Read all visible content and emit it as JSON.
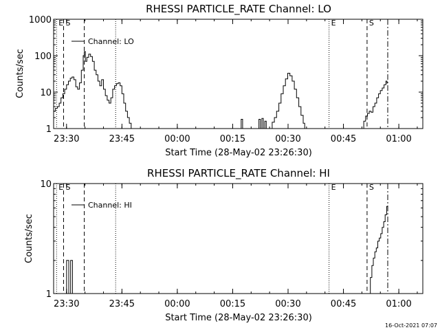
{
  "footer": {
    "timestamp": "16-Oct-2021 07:07"
  },
  "chart_data": [
    {
      "type": "line",
      "title": "RHESSI PARTICLE_RATE Channel: LO",
      "xlabel": "Start Time (28-May-02 23:26:30)",
      "ylabel": "Counts/sec",
      "yscale": "log",
      "ylim": [
        1,
        1000
      ],
      "xlim_minutes": [
        0,
        100
      ],
      "x_ticks": [
        {
          "t": 3.5,
          "label": "23:30"
        },
        {
          "t": 18.5,
          "label": "23:45"
        },
        {
          "t": 33.5,
          "label": "00:00"
        },
        {
          "t": 48.5,
          "label": "00:15"
        },
        {
          "t": 63.5,
          "label": "00:30"
        },
        {
          "t": 78.5,
          "label": "00:45"
        },
        {
          "t": 93.5,
          "label": "01:00"
        }
      ],
      "y_ticks": [
        {
          "v": 1,
          "label": "1"
        },
        {
          "v": 10,
          "label": "10"
        },
        {
          "v": 100,
          "label": "100"
        },
        {
          "v": 1000,
          "label": "1000"
        }
      ],
      "grid": false,
      "legend": {
        "position": "top-left",
        "entries": [
          "Channel: LO"
        ]
      },
      "markers": [
        {
          "t": 0.8,
          "style": "dotted",
          "label": "E"
        },
        {
          "t": 2.7,
          "style": "dashed",
          "label": "S"
        },
        {
          "t": 8.3,
          "style": "dashed",
          "label": ""
        },
        {
          "t": 16.8,
          "style": "dotted",
          "label": ""
        },
        {
          "t": 74.6,
          "style": "dotted",
          "label": "E"
        },
        {
          "t": 84.9,
          "style": "dashed",
          "label": "S"
        },
        {
          "t": 90.5,
          "style": "dashdot",
          "label": ""
        }
      ],
      "series": [
        {
          "name": "Channel: LO",
          "segments": [
            [
              [
                0,
                3
              ],
              [
                0.5,
                3.6
              ],
              [
                1,
                4
              ],
              [
                1.5,
                5
              ],
              [
                2,
                7
              ],
              [
                2.5,
                9
              ],
              [
                3,
                12
              ],
              [
                3.5,
                16
              ],
              [
                4,
                20
              ],
              [
                4.5,
                24
              ],
              [
                5,
                26
              ],
              [
                5.5,
                22
              ],
              [
                6,
                14
              ],
              [
                6.5,
                12
              ],
              [
                7,
                18
              ],
              [
                7.5,
                40
              ],
              [
                8,
                100
              ],
              [
                8.3,
                130
              ],
              [
                8.6,
                70
              ],
              [
                9,
                90
              ],
              [
                9.5,
                110
              ],
              [
                10,
                95
              ],
              [
                10.5,
                70
              ],
              [
                11,
                40
              ],
              [
                11.5,
                30
              ],
              [
                12,
                20
              ],
              [
                12.5,
                15
              ],
              [
                13,
                22
              ],
              [
                13.5,
                12
              ],
              [
                14,
                8
              ],
              [
                14.5,
                6
              ],
              [
                15,
                5
              ],
              [
                15.5,
                7
              ],
              [
                16,
                12
              ],
              [
                16.5,
                15
              ],
              [
                17,
                17
              ],
              [
                17.5,
                18
              ],
              [
                18,
                15
              ],
              [
                18.5,
                9
              ],
              [
                19,
                5
              ],
              [
                19.5,
                3
              ],
              [
                20,
                2
              ],
              [
                20.5,
                1.4
              ],
              [
                21,
                1
              ]
            ],
            [
              [
                50.4,
                1
              ],
              [
                50.8,
                1.8
              ],
              [
                51.2,
                1
              ]
            ],
            [
              [
                55.3,
                1
              ],
              [
                55.6,
                1.8
              ],
              [
                56,
                1
              ],
              [
                56.4,
                1.9
              ],
              [
                56.8,
                1
              ],
              [
                57.2,
                1.6
              ],
              [
                57.6,
                1
              ]
            ],
            [
              [
                58.6,
                1
              ],
              [
                59.2,
                1.5
              ],
              [
                59.8,
                2
              ],
              [
                60.4,
                3
              ],
              [
                61,
                5
              ],
              [
                61.6,
                9
              ],
              [
                62.2,
                15
              ],
              [
                62.8,
                23
              ],
              [
                63.4,
                33
              ],
              [
                64,
                28
              ],
              [
                64.6,
                20
              ],
              [
                65.2,
                12
              ],
              [
                65.8,
                7
              ],
              [
                66.4,
                4
              ],
              [
                67,
                2.3
              ],
              [
                67.6,
                1.4
              ],
              [
                68,
                1
              ]
            ],
            [
              [
                83.6,
                1
              ],
              [
                84,
                1.6
              ],
              [
                84.5,
                2.2
              ],
              [
                85,
                2.6
              ],
              [
                85.5,
                3
              ],
              [
                86,
                2.8
              ],
              [
                86.5,
                4
              ],
              [
                87,
                5
              ],
              [
                87.5,
                7
              ],
              [
                88,
                9
              ],
              [
                88.5,
                11
              ],
              [
                89,
                13
              ],
              [
                89.5,
                16
              ],
              [
                90,
                20
              ],
              [
                90.3,
                17
              ]
            ]
          ]
        }
      ]
    },
    {
      "type": "line",
      "title": "RHESSI PARTICLE_RATE Channel: HI",
      "xlabel": "Start Time (28-May-02 23:26:30)",
      "ylabel": "Counts/sec",
      "yscale": "log",
      "ylim": [
        1,
        10
      ],
      "xlim_minutes": [
        0,
        100
      ],
      "x_ticks": [
        {
          "t": 3.5,
          "label": "23:30"
        },
        {
          "t": 18.5,
          "label": "23:45"
        },
        {
          "t": 33.5,
          "label": "00:00"
        },
        {
          "t": 48.5,
          "label": "00:15"
        },
        {
          "t": 63.5,
          "label": "00:30"
        },
        {
          "t": 78.5,
          "label": "00:45"
        },
        {
          "t": 93.5,
          "label": "01:00"
        }
      ],
      "y_ticks": [
        {
          "v": 1,
          "label": "1"
        },
        {
          "v": 10,
          "label": "10"
        }
      ],
      "grid": false,
      "legend": {
        "position": "top-left",
        "entries": [
          "Channel: HI"
        ]
      },
      "markers": [
        {
          "t": 0.8,
          "style": "dotted",
          "label": "E"
        },
        {
          "t": 2.7,
          "style": "dashed",
          "label": "S"
        },
        {
          "t": 8.3,
          "style": "dashed",
          "label": ""
        },
        {
          "t": 16.8,
          "style": "dotted",
          "label": ""
        },
        {
          "t": 74.6,
          "style": "dotted",
          "label": "E"
        },
        {
          "t": 84.9,
          "style": "dashed",
          "label": "S"
        },
        {
          "t": 90.5,
          "style": "dashdot",
          "label": ""
        }
      ],
      "series": [
        {
          "name": "Channel: HI",
          "segments": [
            [
              [
                3.4,
                1
              ],
              [
                3.5,
                2
              ],
              [
                4,
                2
              ],
              [
                4.1,
                1
              ],
              [
                4.5,
                1
              ],
              [
                4.6,
                2
              ],
              [
                5,
                2
              ],
              [
                5.1,
                1
              ]
            ],
            [
              [
                85.4,
                1
              ],
              [
                85.8,
                1.4
              ],
              [
                86.2,
                1.8
              ],
              [
                86.6,
                2.1
              ],
              [
                87,
                2.4
              ],
              [
                87.4,
                2.6
              ],
              [
                87.8,
                3
              ],
              [
                88.2,
                3.2
              ],
              [
                88.6,
                3.5
              ],
              [
                89,
                4
              ],
              [
                89.4,
                4.5
              ],
              [
                89.8,
                5.2
              ],
              [
                90.2,
                6.2
              ],
              [
                90.5,
                5.6
              ]
            ]
          ]
        }
      ]
    }
  ]
}
